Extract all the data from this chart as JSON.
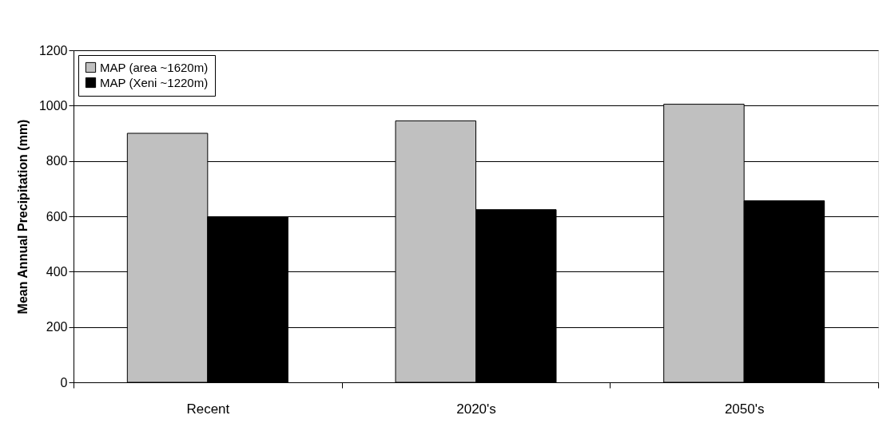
{
  "chart_data": {
    "type": "bar",
    "ylabel": "Mean Annual Precipitation (mm)",
    "categories": [
      "Recent",
      "2020's",
      "2050's"
    ],
    "series": [
      {
        "name": "MAP (area ~1620m)",
        "color": "#c0c0c0",
        "values": [
          900,
          945,
          1005
        ]
      },
      {
        "name": "MAP (Xeni ~1220m)",
        "color": "#000000",
        "values": [
          598,
          624,
          656
        ]
      }
    ],
    "ylim": [
      0,
      1200
    ],
    "yticks": [
      0,
      200,
      400,
      600,
      800,
      1000,
      1200
    ],
    "grid": "y",
    "legend": "top left"
  }
}
